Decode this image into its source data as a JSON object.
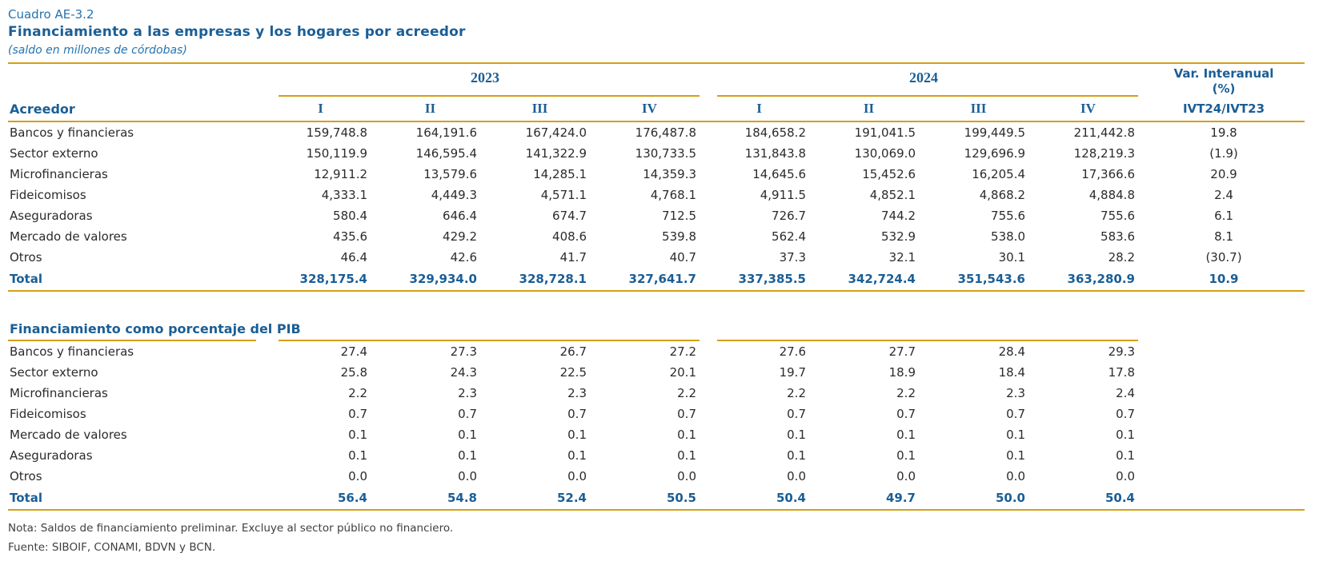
{
  "header": {
    "cuadro": "Cuadro AE-3.2",
    "title": "Financiamiento a las empresas y los hogares por acreedor",
    "subtitle": "(saldo en millones de córdobas)"
  },
  "columns": {
    "label_header": "Acreedor",
    "year_groups": [
      "2023",
      "2024"
    ],
    "quarters": [
      "I",
      "II",
      "III",
      "IV"
    ],
    "var_header_line1": "Var. Interanual",
    "var_header_line2": "(%)",
    "var_subheader": "IVT24/IVT23"
  },
  "table": {
    "rows": [
      {
        "label": "Bancos y financieras",
        "values": [
          "159,748.8",
          "164,191.6",
          "167,424.0",
          "176,487.8",
          "184,658.2",
          "191,041.5",
          "199,449.5",
          "211,442.8"
        ],
        "var": "19.8"
      },
      {
        "label": "Sector externo",
        "values": [
          "150,119.9",
          "146,595.4",
          "141,322.9",
          "130,733.5",
          "131,843.8",
          "130,069.0",
          "129,696.9",
          "128,219.3"
        ],
        "var": "(1.9)"
      },
      {
        "label": "Microfinancieras",
        "values": [
          "12,911.2",
          "13,579.6",
          "14,285.1",
          "14,359.3",
          "14,645.6",
          "15,452.6",
          "16,205.4",
          "17,366.6"
        ],
        "var": "20.9"
      },
      {
        "label": "Fideicomisos",
        "values": [
          "4,333.1",
          "4,449.3",
          "4,571.1",
          "4,768.1",
          "4,911.5",
          "4,852.1",
          "4,868.2",
          "4,884.8"
        ],
        "var": "2.4"
      },
      {
        "label": "Aseguradoras",
        "values": [
          "580.4",
          "646.4",
          "674.7",
          "712.5",
          "726.7",
          "744.2",
          "755.6",
          "755.6"
        ],
        "var": "6.1"
      },
      {
        "label": "Mercado de valores",
        "values": [
          "435.6",
          "429.2",
          "408.6",
          "539.8",
          "562.4",
          "532.9",
          "538.0",
          "583.6"
        ],
        "var": "8.1"
      },
      {
        "label": "Otros",
        "values": [
          "46.4",
          "42.6",
          "41.7",
          "40.7",
          "37.3",
          "32.1",
          "30.1",
          "28.2"
        ],
        "var": "(30.7)"
      }
    ],
    "total": {
      "label": "Total",
      "values": [
        "328,175.4",
        "329,934.0",
        "328,728.1",
        "327,641.7",
        "337,385.5",
        "342,724.4",
        "351,543.6",
        "363,280.9"
      ],
      "var": "10.9"
    }
  },
  "pib": {
    "title": "Financiamiento como porcentaje del PIB",
    "rows": [
      {
        "label": "Bancos y financieras",
        "values": [
          "27.4",
          "27.3",
          "26.7",
          "27.2",
          "27.6",
          "27.7",
          "28.4",
          "29.3"
        ],
        "var": ""
      },
      {
        "label": "Sector externo",
        "values": [
          "25.8",
          "24.3",
          "22.5",
          "20.1",
          "19.7",
          "18.9",
          "18.4",
          "17.8"
        ],
        "var": ""
      },
      {
        "label": "Microfinancieras",
        "values": [
          "2.2",
          "2.3",
          "2.3",
          "2.2",
          "2.2",
          "2.2",
          "2.3",
          "2.4"
        ],
        "var": ""
      },
      {
        "label": "Fideicomisos",
        "values": [
          "0.7",
          "0.7",
          "0.7",
          "0.7",
          "0.7",
          "0.7",
          "0.7",
          "0.7"
        ],
        "var": ""
      },
      {
        "label": "Mercado de valores",
        "values": [
          "0.1",
          "0.1",
          "0.1",
          "0.1",
          "0.1",
          "0.1",
          "0.1",
          "0.1"
        ],
        "var": ""
      },
      {
        "label": "Aseguradoras",
        "values": [
          "0.1",
          "0.1",
          "0.1",
          "0.1",
          "0.1",
          "0.1",
          "0.1",
          "0.1"
        ],
        "var": ""
      },
      {
        "label": "Otros",
        "values": [
          "0.0",
          "0.0",
          "0.0",
          "0.0",
          "0.0",
          "0.0",
          "0.0",
          "0.0"
        ],
        "var": ""
      }
    ],
    "total": {
      "label": "Total",
      "values": [
        "56.4",
        "54.8",
        "52.4",
        "50.5",
        "50.4",
        "49.7",
        "50.0",
        "50.4"
      ],
      "var": ""
    }
  },
  "notes": {
    "nota": "Nota: Saldos de financiamiento preliminar. Excluye al sector público no financiero.",
    "fuente": "Fuente: SIBOIF, CONAMI, BDVN y BCN."
  },
  "colors": {
    "header_blue": "#1A5E96",
    "title_blue": "#2574AE",
    "gold": "#D4A017",
    "body_text": "#2B2B2B",
    "note_text": "#3F3F3F"
  }
}
